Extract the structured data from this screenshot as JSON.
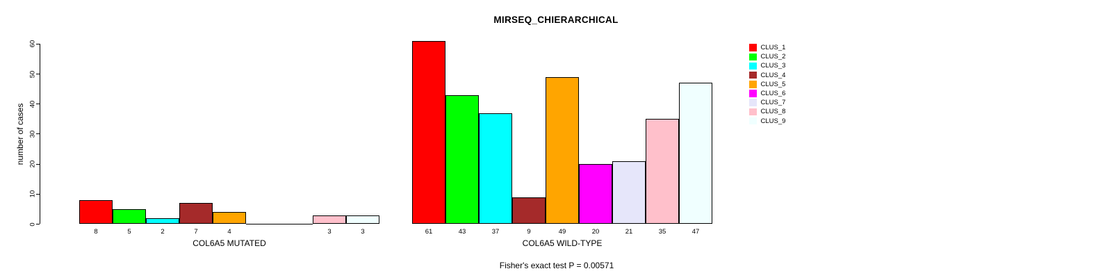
{
  "chart_data": {
    "type": "bar",
    "title": "MIRSEQ_CHIERARCHICAL",
    "ylabel": "number of cases",
    "xlabel": "",
    "ylim": [
      0,
      60
    ],
    "yticks": [
      0,
      10,
      20,
      30,
      40,
      50,
      60
    ],
    "grid": false,
    "legend_position": "right",
    "categories": [
      "COL6A5 MUTATED",
      "COL6A5 WILD-TYPE"
    ],
    "series": [
      {
        "name": "CLUS_1",
        "color": "#ff0000",
        "values": [
          8,
          61
        ]
      },
      {
        "name": "CLUS_2",
        "color": "#00ff00",
        "values": [
          5,
          43
        ]
      },
      {
        "name": "CLUS_3",
        "color": "#00ffff",
        "values": [
          2,
          37
        ]
      },
      {
        "name": "CLUS_4",
        "color": "#a52a2a",
        "values": [
          7,
          9
        ]
      },
      {
        "name": "CLUS_5",
        "color": "#ffa500",
        "values": [
          4,
          49
        ]
      },
      {
        "name": "CLUS_6",
        "color": "#ff00ff",
        "values": [
          0,
          20
        ]
      },
      {
        "name": "CLUS_7",
        "color": "#e6e6fa",
        "values": [
          0,
          21
        ]
      },
      {
        "name": "CLUS_8",
        "color": "#ffc0cb",
        "values": [
          3,
          35
        ]
      },
      {
        "name": "CLUS_9",
        "color": "#f0ffff",
        "values": [
          3,
          47
        ]
      }
    ],
    "bar_value_labels_note": "values shown under each nonzero bar",
    "annotation": "Fisher's exact test P = 0.00571"
  }
}
